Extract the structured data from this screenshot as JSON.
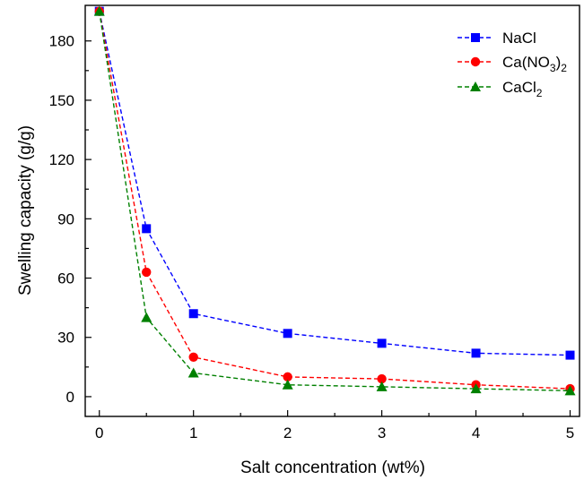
{
  "chart_data": {
    "type": "line",
    "title": "",
    "xlabel": "Salt concentration (wt%)",
    "ylabel": "Swelling capacity (g/g)",
    "xlim": [
      -0.15,
      5.1
    ],
    "ylim": [
      -10,
      198
    ],
    "xticks": [
      0,
      1,
      2,
      3,
      4,
      5
    ],
    "yticks": [
      0,
      30,
      60,
      90,
      120,
      150,
      180
    ],
    "x_minor_ticks": [
      0.5,
      1.5,
      2.5,
      3.5,
      4.5
    ],
    "y_minor_ticks": [
      15,
      45,
      75,
      105,
      135,
      165
    ],
    "legend_position": "top-right",
    "line_style": "dashed",
    "series": [
      {
        "name": "NaCl",
        "name_base": "NaCl",
        "color": "#0000ff",
        "marker": "square",
        "x": [
          0,
          0.5,
          1,
          2,
          3,
          4,
          5
        ],
        "values": [
          195,
          85,
          42,
          32,
          27,
          22,
          21
        ]
      },
      {
        "name": "Ca(NO3)2",
        "name_pre": "Ca(NO",
        "name_sub1": "3",
        "name_mid": ")",
        "name_sub2": "2",
        "color": "#ff0000",
        "marker": "circle",
        "x": [
          0,
          0.5,
          1,
          2,
          3,
          4,
          5
        ],
        "values": [
          195,
          63,
          20,
          10,
          9,
          6,
          4
        ]
      },
      {
        "name": "CaCl2",
        "name_pre": "CaCl",
        "name_sub": "2",
        "color": "#008000",
        "marker": "triangle",
        "x": [
          0,
          0.5,
          1,
          2,
          3,
          4,
          5
        ],
        "values": [
          195,
          40,
          12,
          6,
          5,
          4,
          3
        ]
      }
    ]
  }
}
